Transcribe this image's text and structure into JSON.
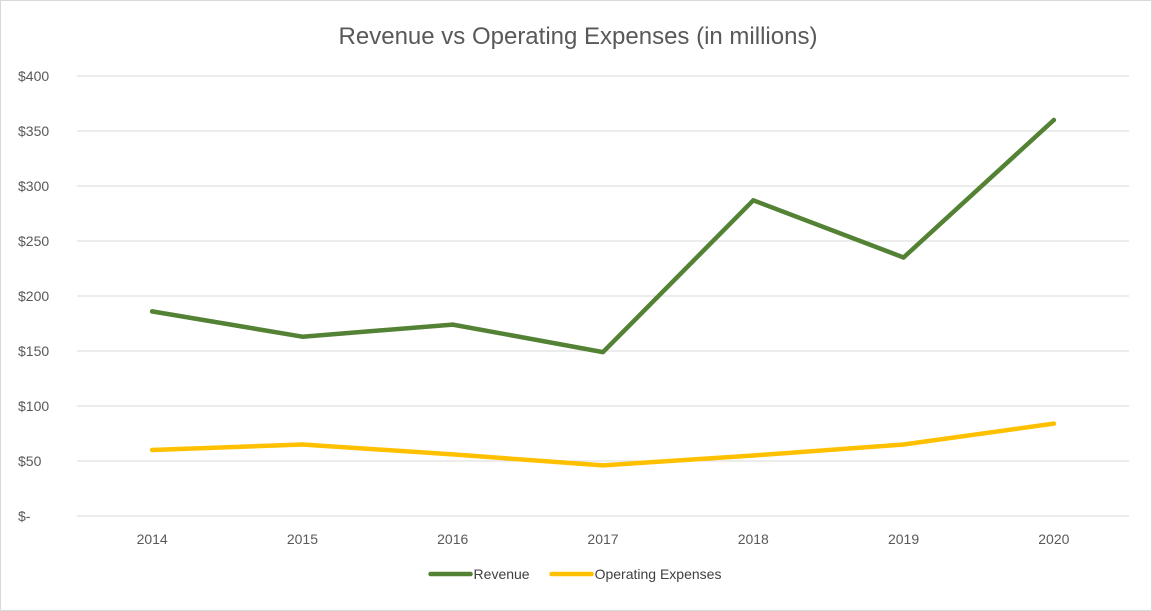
{
  "chart_data": {
    "type": "line",
    "title": "Revenue vs Operating Expenses (in millions)",
    "xlabel": "",
    "ylabel": "",
    "categories": [
      "2014",
      "2015",
      "2016",
      "2017",
      "2018",
      "2019",
      "2020"
    ],
    "ylim": [
      0,
      400
    ],
    "yticks": [
      0,
      50,
      100,
      150,
      200,
      250,
      300,
      350,
      400
    ],
    "ytick_labels": [
      "$-",
      "$50",
      "$100",
      "$150",
      "$200",
      "$250",
      "$300",
      "$350",
      "$400"
    ],
    "grid": true,
    "legend_position": "bottom",
    "series": [
      {
        "name": "Revenue",
        "color": "#548235",
        "values": [
          186,
          163,
          174,
          149,
          287,
          235,
          360
        ]
      },
      {
        "name": "Operating Expenses",
        "color": "#FFC000",
        "values": [
          60,
          65,
          56,
          46,
          55,
          65,
          84
        ]
      }
    ]
  }
}
